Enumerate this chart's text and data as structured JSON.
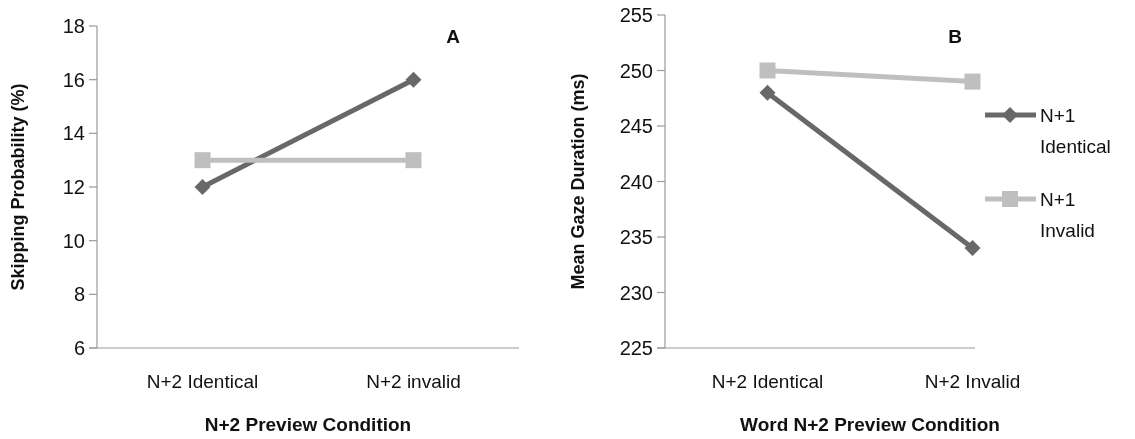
{
  "chart_data": [
    {
      "type": "line",
      "title": "A",
      "xlabel": "N+2 Preview Condition",
      "ylabel": "Skipping Probability (%)",
      "categories": [
        "N+2 Identical",
        "N+2 invalid"
      ],
      "ylim": [
        6,
        18
      ],
      "yticks": [
        6,
        8,
        10,
        12,
        14,
        16,
        18
      ],
      "grid": false,
      "legend": false,
      "series": [
        {
          "color": "#686868",
          "marker": "diamond",
          "values": [
            12,
            16
          ]
        },
        {
          "color": "#bfbfbf",
          "marker": "square",
          "values": [
            13,
            13
          ]
        }
      ]
    },
    {
      "type": "line",
      "title": "B",
      "xlabel": "Word N+2 Preview Condition",
      "ylabel": "Mean Gaze Duration (ms)",
      "categories": [
        "N+2 Identical",
        "N+2 Invalid"
      ],
      "ylim": [
        225,
        255
      ],
      "yticks": [
        225,
        230,
        235,
        240,
        245,
        250,
        255
      ],
      "grid": false,
      "legend": "right",
      "series": [
        {
          "name": "N+1 Identical",
          "color": "#686868",
          "marker": "diamond",
          "values": [
            248,
            234
          ]
        },
        {
          "name": "N+1 Invalid",
          "color": "#bfbfbf",
          "marker": "square",
          "values": [
            250,
            249
          ]
        }
      ]
    }
  ]
}
